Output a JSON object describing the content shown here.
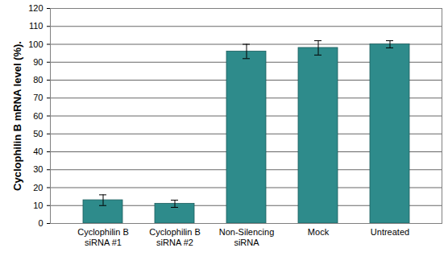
{
  "chart_data": {
    "type": "bar",
    "categories": [
      "Cyclophilin B\nsiRNA #1",
      "Cyclophilin B\nsiRNA #2",
      "Non-Silencing\nsiRNA",
      "Mock",
      "Untreated"
    ],
    "values": [
      13,
      11,
      96,
      98,
      100
    ],
    "errors": [
      3,
      2,
      4,
      4,
      2
    ],
    "color": "#2e8b8b",
    "y_label": "Cyclophilin B mRNA level (%).",
    "ylim": [
      0,
      120
    ],
    "yticks": [
      0,
      10,
      20,
      30,
      40,
      50,
      60,
      70,
      80,
      90,
      100,
      110,
      120
    ],
    "grid": true
  }
}
